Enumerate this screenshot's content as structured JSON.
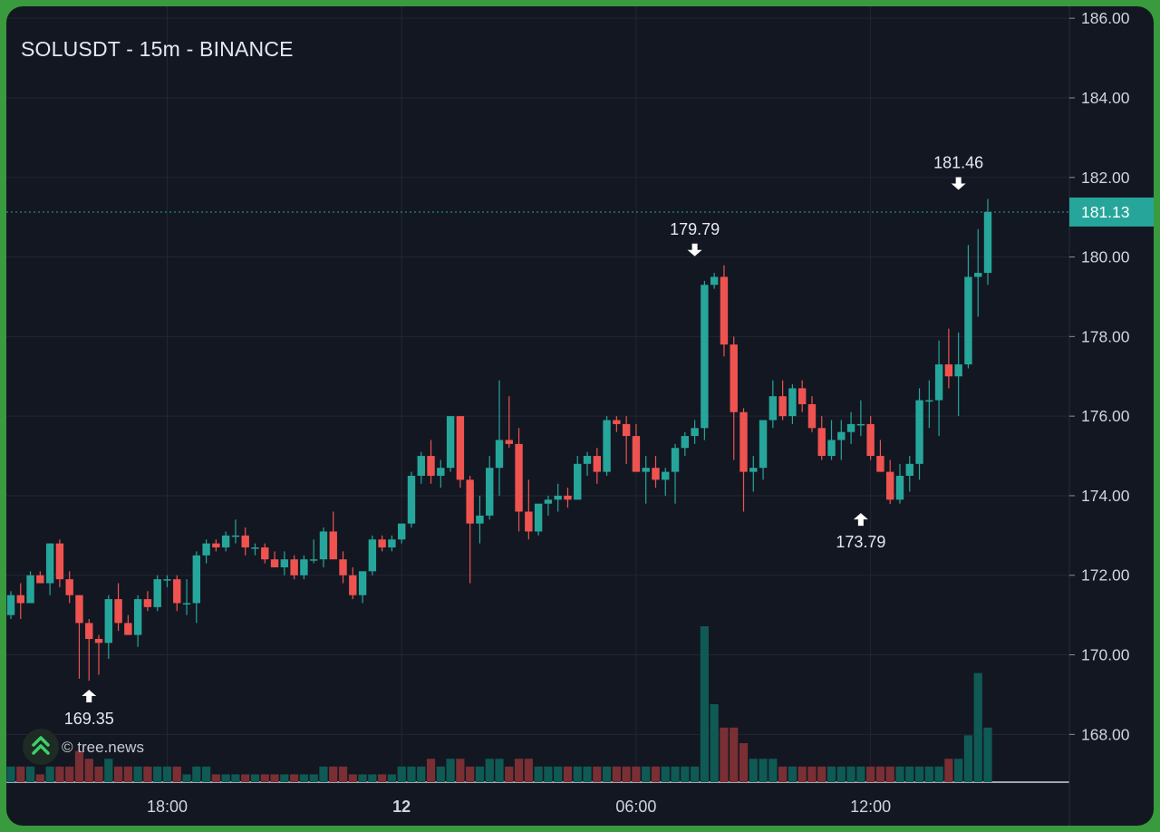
{
  "chart_data": {
    "type": "candlestick",
    "title": "SOLUSDT - 15m - BINANCE",
    "credit": "© tree.news",
    "y_ticks": [
      "186.00",
      "184.00",
      "182.00",
      "180.00",
      "178.00",
      "176.00",
      "174.00",
      "172.00",
      "170.00",
      "168.00"
    ],
    "y_tick_values": [
      186,
      184,
      182,
      180,
      178,
      176,
      174,
      172,
      170,
      168
    ],
    "x_ticks": [
      {
        "label": "18:00",
        "index": 16,
        "bold": false
      },
      {
        "label": "12",
        "index": 40,
        "bold": true
      },
      {
        "label": "06:00",
        "index": 64,
        "bold": false
      },
      {
        "label": "12:00",
        "index": 88,
        "bold": false
      }
    ],
    "ylim": [
      166.8,
      186.3
    ],
    "current_price": "181.13",
    "annotations": [
      {
        "label": "169.35",
        "index": 8,
        "price": 169.35,
        "kind": "low"
      },
      {
        "label": "179.79",
        "index": 70,
        "price": 179.79,
        "kind": "high"
      },
      {
        "label": "173.79",
        "index": 87,
        "price": 173.79,
        "kind": "low"
      },
      {
        "label": "181.46",
        "index": 97,
        "price": 181.46,
        "kind": "high"
      }
    ],
    "colors": {
      "up": "#26a69a",
      "down": "#ef5350",
      "up_volume": "#0f5a54",
      "down_volume": "#7a2f34",
      "bg": "#131722",
      "grid": "#232733",
      "axis_text": "#d1d4dc",
      "price_tag": "#26a69a"
    },
    "candles": [
      [
        171.0,
        171.6,
        170.9,
        171.5,
        2
      ],
      [
        171.5,
        171.8,
        170.9,
        171.3,
        2
      ],
      [
        171.3,
        172.1,
        171.3,
        172.0,
        2
      ],
      [
        172.0,
        172.1,
        171.8,
        171.8,
        1
      ],
      [
        171.8,
        172.8,
        171.5,
        172.8,
        2
      ],
      [
        172.8,
        172.9,
        171.7,
        171.9,
        2
      ],
      [
        171.9,
        172.1,
        171.3,
        171.5,
        2
      ],
      [
        171.5,
        171.5,
        169.4,
        170.8,
        4
      ],
      [
        170.8,
        170.9,
        169.35,
        170.4,
        3
      ],
      [
        170.4,
        170.5,
        169.5,
        170.3,
        2
      ],
      [
        170.3,
        171.5,
        169.9,
        171.4,
        3
      ],
      [
        171.4,
        171.8,
        170.6,
        170.8,
        2
      ],
      [
        170.8,
        171.0,
        170.5,
        170.5,
        2
      ],
      [
        170.5,
        171.5,
        170.2,
        171.4,
        2
      ],
      [
        171.4,
        171.6,
        171.1,
        171.2,
        2
      ],
      [
        171.2,
        172.0,
        171.1,
        171.9,
        2
      ],
      [
        171.9,
        172.0,
        171.7,
        171.9,
        2
      ],
      [
        171.9,
        172.0,
        171.1,
        171.3,
        2
      ],
      [
        171.3,
        171.9,
        171.0,
        171.3,
        1
      ],
      [
        171.3,
        172.6,
        170.8,
        172.5,
        2
      ],
      [
        172.5,
        172.9,
        172.3,
        172.8,
        2
      ],
      [
        172.8,
        172.9,
        172.6,
        172.7,
        1
      ],
      [
        172.7,
        173.1,
        172.6,
        173.0,
        1
      ],
      [
        173.0,
        173.4,
        172.8,
        173.0,
        1
      ],
      [
        173.0,
        173.2,
        172.5,
        172.7,
        1
      ],
      [
        172.7,
        172.8,
        172.5,
        172.7,
        1
      ],
      [
        172.7,
        172.8,
        172.3,
        172.4,
        1
      ],
      [
        172.4,
        172.6,
        172.2,
        172.2,
        1
      ],
      [
        172.2,
        172.6,
        172.0,
        172.4,
        1
      ],
      [
        172.4,
        172.5,
        171.9,
        172.0,
        1
      ],
      [
        172.0,
        172.5,
        171.9,
        172.4,
        1
      ],
      [
        172.4,
        172.9,
        172.3,
        172.4,
        1
      ],
      [
        172.4,
        173.2,
        172.2,
        173.1,
        2
      ],
      [
        173.1,
        173.6,
        172.4,
        172.4,
        2
      ],
      [
        172.4,
        172.6,
        171.8,
        172.0,
        2
      ],
      [
        172.0,
        172.2,
        171.4,
        171.5,
        1
      ],
      [
        171.5,
        172.1,
        171.3,
        172.1,
        1
      ],
      [
        172.1,
        173.0,
        172.0,
        172.9,
        1
      ],
      [
        172.9,
        173.0,
        172.6,
        172.7,
        1
      ],
      [
        172.7,
        173.0,
        172.6,
        172.9,
        1
      ],
      [
        172.9,
        173.3,
        172.8,
        173.3,
        2
      ],
      [
        173.3,
        174.6,
        173.2,
        174.5,
        2
      ],
      [
        174.5,
        175.1,
        174.3,
        175.0,
        2
      ],
      [
        175.0,
        175.4,
        174.3,
        174.5,
        3
      ],
      [
        174.5,
        174.9,
        174.2,
        174.7,
        2
      ],
      [
        174.7,
        176.0,
        174.6,
        176.0,
        3
      ],
      [
        176.0,
        176.0,
        174.2,
        174.4,
        3
      ],
      [
        174.4,
        174.5,
        171.8,
        173.3,
        2
      ],
      [
        173.3,
        174.0,
        172.8,
        173.5,
        2
      ],
      [
        173.5,
        175.0,
        173.4,
        174.7,
        3
      ],
      [
        174.7,
        176.9,
        174.0,
        175.4,
        3
      ],
      [
        175.4,
        176.5,
        175.2,
        175.3,
        2
      ],
      [
        175.3,
        175.7,
        173.1,
        173.6,
        3
      ],
      [
        173.6,
        174.4,
        172.9,
        173.1,
        3
      ],
      [
        173.1,
        173.7,
        173.0,
        173.8,
        2
      ],
      [
        173.8,
        174.0,
        173.5,
        173.9,
        2
      ],
      [
        173.9,
        174.3,
        173.6,
        174.0,
        2
      ],
      [
        174.0,
        174.2,
        173.7,
        173.9,
        2
      ],
      [
        173.9,
        175.0,
        173.9,
        174.8,
        2
      ],
      [
        174.8,
        175.1,
        174.5,
        175.0,
        2
      ],
      [
        175.0,
        175.2,
        174.3,
        174.6,
        2
      ],
      [
        174.6,
        176.0,
        174.5,
        175.9,
        2
      ],
      [
        175.9,
        176.0,
        175.6,
        175.8,
        2
      ],
      [
        175.8,
        176.0,
        174.8,
        175.5,
        2
      ],
      [
        175.5,
        175.8,
        174.6,
        174.6,
        2
      ],
      [
        174.6,
        175.0,
        173.8,
        174.7,
        2
      ],
      [
        174.7,
        175.0,
        174.2,
        174.4,
        2
      ],
      [
        174.4,
        174.7,
        174.0,
        174.6,
        2
      ],
      [
        174.6,
        175.3,
        173.8,
        175.2,
        2
      ],
      [
        175.2,
        175.6,
        175.0,
        175.5,
        2
      ],
      [
        175.5,
        175.9,
        175.3,
        175.7,
        2
      ],
      [
        175.7,
        179.4,
        175.4,
        179.3,
        20
      ],
      [
        179.3,
        179.6,
        179.2,
        179.5,
        10
      ],
      [
        179.5,
        179.79,
        177.5,
        177.8,
        7
      ],
      [
        177.8,
        178.0,
        174.9,
        176.1,
        7
      ],
      [
        176.1,
        176.2,
        173.6,
        174.6,
        5
      ],
      [
        174.6,
        175.0,
        174.1,
        174.7,
        3
      ],
      [
        174.7,
        175.9,
        174.4,
        175.9,
        3
      ],
      [
        175.9,
        176.9,
        175.7,
        176.5,
        3
      ],
      [
        176.5,
        176.9,
        175.9,
        176.0,
        2
      ],
      [
        176.0,
        176.8,
        175.8,
        176.7,
        2
      ],
      [
        176.7,
        176.9,
        176.1,
        176.3,
        2
      ],
      [
        176.3,
        176.5,
        175.6,
        175.7,
        2
      ],
      [
        175.7,
        176.0,
        174.9,
        175.0,
        2
      ],
      [
        175.0,
        175.9,
        174.9,
        175.4,
        2
      ],
      [
        175.4,
        175.9,
        174.9,
        175.6,
        2
      ],
      [
        175.6,
        176.1,
        175.3,
        175.8,
        2
      ],
      [
        175.8,
        176.4,
        175.5,
        175.8,
        2
      ],
      [
        175.8,
        176.0,
        174.9,
        175.0,
        2
      ],
      [
        175.0,
        175.4,
        174.6,
        174.6,
        2
      ],
      [
        174.6,
        174.9,
        173.79,
        173.9,
        2
      ],
      [
        173.9,
        174.8,
        173.8,
        174.5,
        2
      ],
      [
        174.5,
        175.0,
        174.1,
        174.8,
        2
      ],
      [
        174.8,
        176.7,
        174.4,
        176.4,
        2
      ],
      [
        176.4,
        176.9,
        175.7,
        176.4,
        2
      ],
      [
        176.4,
        177.9,
        175.5,
        177.3,
        2
      ],
      [
        177.3,
        178.2,
        176.7,
        177.0,
        3
      ],
      [
        177.0,
        178.1,
        176.0,
        177.3,
        3
      ],
      [
        177.3,
        180.3,
        177.2,
        179.5,
        6
      ],
      [
        179.5,
        180.7,
        178.5,
        179.6,
        14
      ],
      [
        179.6,
        181.46,
        179.3,
        181.13,
        7
      ]
    ]
  }
}
